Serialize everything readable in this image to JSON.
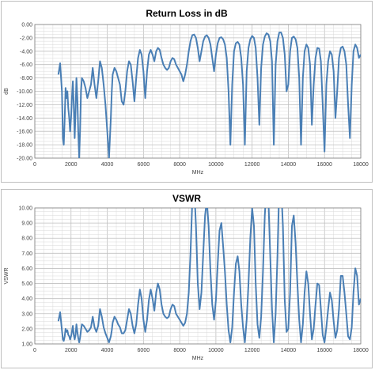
{
  "colors": {
    "line": "#4a7fb5",
    "grid": "#d9d9d9",
    "axis": "#808080"
  },
  "chart_data": [
    {
      "type": "line",
      "title": "Return Loss in dB",
      "xlabel": "MHz",
      "ylabel": "dB",
      "xlim": [
        0,
        18000
      ],
      "ylim": [
        -20,
        0
      ],
      "grid": true,
      "legend": "none",
      "x_ticks": [
        "0",
        "2000",
        "4000",
        "6000",
        "8000",
        "10000",
        "12000",
        "14000",
        "16000",
        "18000"
      ],
      "y_ticks": [
        "0.00",
        "-2.00",
        "-4.00",
        "-6.00",
        "-8.00",
        "-10.00",
        "-12.00",
        "-14.00",
        "-16.00",
        "-18.00",
        "-20.00"
      ],
      "series": [
        {
          "x": [
            1300,
            1400,
            1500,
            1550,
            1600,
            1650,
            1700,
            1750,
            1800,
            1850,
            1900,
            1950,
            2000,
            2050,
            2100,
            2150,
            2200,
            2250,
            2300,
            2350,
            2400,
            2450,
            2500,
            2550,
            2600,
            2700,
            2800,
            2900,
            3000,
            3100,
            3200,
            3300,
            3400,
            3500,
            3600,
            3700,
            3800,
            3900,
            4000,
            4100,
            4200,
            4250,
            4300,
            4400,
            4500,
            4600,
            4700,
            4800,
            4900,
            5000,
            5100,
            5200,
            5300,
            5400,
            5500,
            5600,
            5700,
            5800,
            5900,
            6000,
            6100,
            6200,
            6300,
            6400,
            6500,
            6600,
            6700,
            6800,
            6900,
            7000,
            7100,
            7200,
            7300,
            7400,
            7500,
            7600,
            7700,
            7800,
            7900,
            8000,
            8100,
            8200,
            8300,
            8400,
            8500,
            8600,
            8700,
            8800,
            8900,
            9000,
            9100,
            9200,
            9300,
            9400,
            9500,
            9600,
            9700,
            9800,
            9900,
            10000,
            10100,
            10200,
            10300,
            10400,
            10500,
            10600,
            10700,
            10800,
            10900,
            11000,
            11100,
            11200,
            11300,
            11400,
            11500,
            11600,
            11700,
            11800,
            11900,
            12000,
            12100,
            12200,
            12300,
            12400,
            12500,
            12600,
            12700,
            12800,
            12900,
            13000,
            13100,
            13200,
            13300,
            13400,
            13500,
            13600,
            13700,
            13800,
            13900,
            14000,
            14100,
            14200,
            14300,
            14400,
            14500,
            14600,
            14700,
            14800,
            14900,
            15000,
            15100,
            15200,
            15300,
            15400,
            15500,
            15600,
            15700,
            15800,
            15900,
            16000,
            16100,
            16200,
            16300,
            16400,
            16500,
            16600,
            16700,
            16800,
            16900,
            17000,
            17100,
            17200,
            17300,
            17400,
            17500,
            17600,
            17700,
            17800,
            17900,
            18000
          ],
          "y": [
            -7.5,
            -5.8,
            -10.0,
            -17.0,
            -18.0,
            -14.0,
            -9.5,
            -11.0,
            -10.0,
            -12.5,
            -14.0,
            -16.0,
            -14.0,
            -11.0,
            -8.5,
            -12.0,
            -17.0,
            -13.0,
            -8.0,
            -11.0,
            -16.0,
            -20.0,
            -16.0,
            -10.0,
            -8.0,
            -8.5,
            -9.5,
            -11.0,
            -10.0,
            -9.0,
            -6.5,
            -9.0,
            -11.0,
            -8.5,
            -5.5,
            -6.5,
            -9.0,
            -12.0,
            -16.0,
            -20.0,
            -14.0,
            -10.0,
            -7.5,
            -6.5,
            -7.0,
            -8.0,
            -9.0,
            -11.5,
            -12.0,
            -10.0,
            -7.0,
            -5.5,
            -6.0,
            -8.5,
            -11.5,
            -8.0,
            -5.0,
            -3.8,
            -4.5,
            -7.0,
            -11.0,
            -7.0,
            -4.5,
            -3.8,
            -4.5,
            -5.5,
            -4.0,
            -3.5,
            -3.8,
            -5.0,
            -6.0,
            -6.5,
            -6.8,
            -6.5,
            -5.5,
            -5.0,
            -5.2,
            -6.0,
            -6.5,
            -7.0,
            -7.5,
            -8.5,
            -7.5,
            -6.0,
            -4.0,
            -2.5,
            -1.6,
            -1.5,
            -2.0,
            -3.5,
            -5.5,
            -4.0,
            -2.5,
            -1.8,
            -1.6,
            -2.0,
            -3.0,
            -5.0,
            -7.0,
            -4.5,
            -2.8,
            -2.0,
            -1.9,
            -2.2,
            -3.0,
            -5.0,
            -10.0,
            -18.0,
            -9.0,
            -4.0,
            -2.8,
            -2.6,
            -3.0,
            -5.0,
            -9.0,
            -18.0,
            -7.0,
            -3.5,
            -2.2,
            -1.7,
            -2.0,
            -3.5,
            -8.0,
            -15.0,
            -6.5,
            -3.0,
            -1.8,
            -1.3,
            -1.5,
            -2.5,
            -5.5,
            -18.0,
            -6.0,
            -2.5,
            -1.2,
            -1.2,
            -2.0,
            -4.5,
            -10.0,
            -9.0,
            -4.0,
            -2.0,
            -1.8,
            -2.2,
            -3.5,
            -8.0,
            -18.0,
            -8.0,
            -4.0,
            -3.0,
            -3.5,
            -6.0,
            -15.0,
            -9.0,
            -5.0,
            -3.5,
            -3.6,
            -5.5,
            -12.0,
            -19.0,
            -9.0,
            -5.5,
            -4.0,
            -4.5,
            -7.0,
            -14.0,
            -10.0,
            -5.0,
            -3.5,
            -3.3,
            -4.0,
            -6.0,
            -12.0,
            -17.0,
            -9.0,
            -4.0,
            -3.0,
            -3.5,
            -5.0,
            -4.5
          ]
        }
      ]
    },
    {
      "type": "line",
      "title": "VSWR",
      "xlabel": "MHz",
      "ylabel": "VSWR",
      "xlim": [
        0,
        18000
      ],
      "ylim": [
        1,
        10
      ],
      "grid": true,
      "legend": "none",
      "x_ticks": [
        "0",
        "2000",
        "4000",
        "6000",
        "8000",
        "10000",
        "12000",
        "14000",
        "16000",
        "18000"
      ],
      "y_ticks": [
        "10.00",
        "9.00",
        "8.00",
        "7.00",
        "6.00",
        "5.00",
        "4.00",
        "3.00",
        "2.00",
        "1.00"
      ],
      "series": [
        {
          "x": [
            1300,
            1400,
            1500,
            1550,
            1600,
            1650,
            1700,
            1750,
            1800,
            1850,
            1900,
            1950,
            2000,
            2050,
            2100,
            2150,
            2200,
            2250,
            2300,
            2350,
            2400,
            2450,
            2500,
            2550,
            2600,
            2700,
            2800,
            2900,
            3000,
            3100,
            3200,
            3300,
            3400,
            3500,
            3600,
            3700,
            3800,
            3900,
            4000,
            4100,
            4200,
            4250,
            4300,
            4400,
            4500,
            4600,
            4700,
            4800,
            4900,
            5000,
            5100,
            5200,
            5300,
            5400,
            5500,
            5600,
            5700,
            5800,
            5900,
            6000,
            6100,
            6200,
            6300,
            6400,
            6500,
            6600,
            6700,
            6800,
            6900,
            7000,
            7100,
            7200,
            7300,
            7400,
            7500,
            7600,
            7700,
            7800,
            7900,
            8000,
            8100,
            8200,
            8300,
            8400,
            8500,
            8600,
            8700,
            8800,
            8900,
            9000,
            9100,
            9200,
            9300,
            9400,
            9500,
            9600,
            9700,
            9800,
            9900,
            10000,
            10100,
            10200,
            10300,
            10400,
            10500,
            10600,
            10700,
            10800,
            10900,
            11000,
            11100,
            11200,
            11300,
            11400,
            11500,
            11600,
            11700,
            11800,
            11900,
            12000,
            12100,
            12200,
            12300,
            12400,
            12500,
            12600,
            12700,
            12800,
            12900,
            13000,
            13100,
            13200,
            13300,
            13400,
            13500,
            13600,
            13700,
            13800,
            13900,
            14000,
            14100,
            14200,
            14300,
            14400,
            14500,
            14600,
            14700,
            14800,
            14900,
            15000,
            15100,
            15200,
            15300,
            15400,
            15500,
            15600,
            15700,
            15800,
            15900,
            16000,
            16100,
            16200,
            16300,
            16400,
            16500,
            16600,
            16700,
            16800,
            16900,
            17000,
            17100,
            17200,
            17300,
            17400,
            17500,
            17600,
            17700,
            17800,
            17900,
            18000
          ],
          "y": [
            2.5,
            3.1,
            1.9,
            1.3,
            1.2,
            1.5,
            2.0,
            1.8,
            1.9,
            1.6,
            1.5,
            1.3,
            1.5,
            1.8,
            2.2,
            1.6,
            1.3,
            1.6,
            2.3,
            1.8,
            1.4,
            1.1,
            1.4,
            1.9,
            2.3,
            2.2,
            2.0,
            1.8,
            1.9,
            2.1,
            2.8,
            2.1,
            1.8,
            2.2,
            3.3,
            2.8,
            2.1,
            1.7,
            1.4,
            1.1,
            1.5,
            1.9,
            2.4,
            2.8,
            2.6,
            2.3,
            2.1,
            1.7,
            1.7,
            1.9,
            2.6,
            3.3,
            3.0,
            2.2,
            1.7,
            2.3,
            3.6,
            4.6,
            4.0,
            2.6,
            1.8,
            2.6,
            3.9,
            4.6,
            4.0,
            3.2,
            4.4,
            5.0,
            4.6,
            3.6,
            3.0,
            2.8,
            2.7,
            2.8,
            3.3,
            3.6,
            3.5,
            3.0,
            2.8,
            2.6,
            2.4,
            2.2,
            2.4,
            3.0,
            4.4,
            7.0,
            10.5,
            11.5,
            8.8,
            5.0,
            3.3,
            4.4,
            7.0,
            9.5,
            10.5,
            8.8,
            5.8,
            3.6,
            2.6,
            3.9,
            6.3,
            8.5,
            9.0,
            7.5,
            5.8,
            3.6,
            1.9,
            1.1,
            2.1,
            4.4,
            6.3,
            6.8,
            5.8,
            3.6,
            2.1,
            1.1,
            2.6,
            5.0,
            8.0,
            10.0,
            8.8,
            5.0,
            2.3,
            1.4,
            2.8,
            5.8,
            9.5,
            11.5,
            10.5,
            6.8,
            3.3,
            1.1,
            3.0,
            6.8,
            11.5,
            11.5,
            8.8,
            3.9,
            1.8,
            2.0,
            4.4,
            8.8,
            9.5,
            7.7,
            5.0,
            2.6,
            1.1,
            2.3,
            4.4,
            5.8,
            5.0,
            3.0,
            1.3,
            2.0,
            3.6,
            5.0,
            4.9,
            3.3,
            1.6,
            1.1,
            2.1,
            3.3,
            4.4,
            3.9,
            2.5,
            1.4,
            1.9,
            3.3,
            5.5,
            5.5,
            4.4,
            3.0,
            1.5,
            1.3,
            2.1,
            4.4,
            6.0,
            5.5,
            3.6,
            4.0
          ]
        }
      ]
    }
  ]
}
